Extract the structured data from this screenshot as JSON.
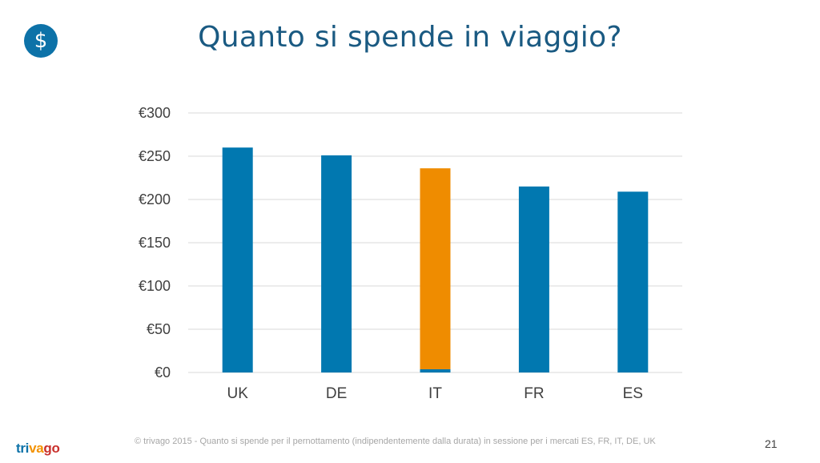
{
  "slide": {
    "title": "Quanto si spende in viaggio?",
    "icon": "dollar-icon",
    "icon_glyph": "$",
    "footer": "© trivago 2015 - Quanto si spende per il pernottamento (indipendentemente dalla durata) in sessione per i mercati ES, FR, IT, DE, UK",
    "page_number": "21",
    "brand": {
      "part1": "tri",
      "part2": "va",
      "part3": "go"
    }
  },
  "colors": {
    "primary": "#0d72a8",
    "bar": "#0178b0",
    "highlight": "#ef8c00",
    "grid": "#d9d9d9"
  },
  "chart_data": {
    "type": "bar",
    "categories": [
      "UK",
      "DE",
      "IT",
      "FR",
      "ES"
    ],
    "values": [
      260,
      251,
      236,
      215,
      209
    ],
    "highlight": "IT",
    "yticks": [
      "€0",
      "€50",
      "€100",
      "€150",
      "€200",
      "€250",
      "€300"
    ],
    "ytick_values": [
      0,
      50,
      100,
      150,
      200,
      250,
      300
    ],
    "ylim": [
      0,
      300
    ],
    "grid": true,
    "legend": "none"
  }
}
